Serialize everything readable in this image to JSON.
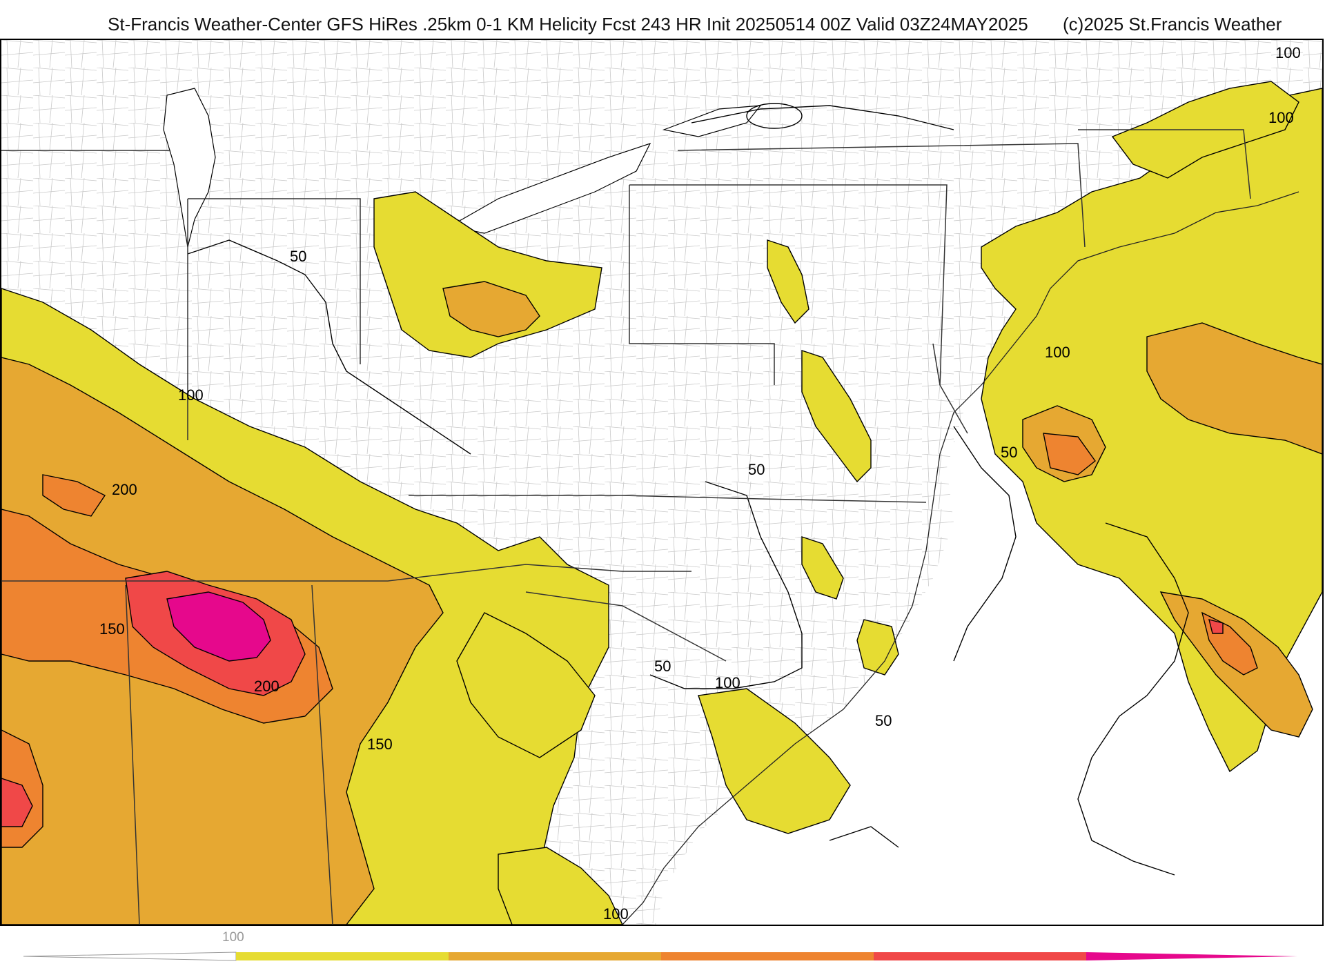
{
  "header": {
    "title": "St-Francis Weather-Center GFS HiRes .25km 0-1 KM Helicity Fcst 243 HR Init 20250514 00Z  Valid 03Z24MAY2025",
    "copyright": "(c)2025 St.Francis Weather"
  },
  "colors": {
    "level_50_100": "#e6dc32",
    "level_100_150": "#e6a832",
    "level_150_200": "#ee8430",
    "level_200_250": "#f04848",
    "level_250_plus": "#e6088c",
    "contour": "#000000",
    "county_border": "#bbbbbb",
    "state_border": "#333333"
  },
  "contour_labels": [
    {
      "id": "label-50-michigan",
      "text": "50"
    },
    {
      "id": "label-100-illinois",
      "text": "100"
    },
    {
      "id": "label-200-missouri",
      "text": "200"
    },
    {
      "id": "label-150-arkansas",
      "text": "150"
    },
    {
      "id": "label-200-tennessee",
      "text": "200"
    },
    {
      "id": "label-150-georgia",
      "text": "150"
    },
    {
      "id": "label-50-virginia",
      "text": "50"
    },
    {
      "id": "label-50-carolina",
      "text": "50"
    },
    {
      "id": "label-100-carolina",
      "text": "100"
    },
    {
      "id": "label-50-outerbanks",
      "text": "50"
    },
    {
      "id": "label-100-atlantic",
      "text": "100"
    },
    {
      "id": "label-50-atlantic",
      "text": "50"
    },
    {
      "id": "label-100-newengland",
      "text": "100"
    },
    {
      "id": "label-100-maine",
      "text": "100"
    },
    {
      "id": "label-100-florida",
      "text": "100"
    }
  ],
  "legend": {
    "tick_label": "100",
    "levels": [
      50,
      100,
      150,
      200,
      250,
      300
    ]
  }
}
